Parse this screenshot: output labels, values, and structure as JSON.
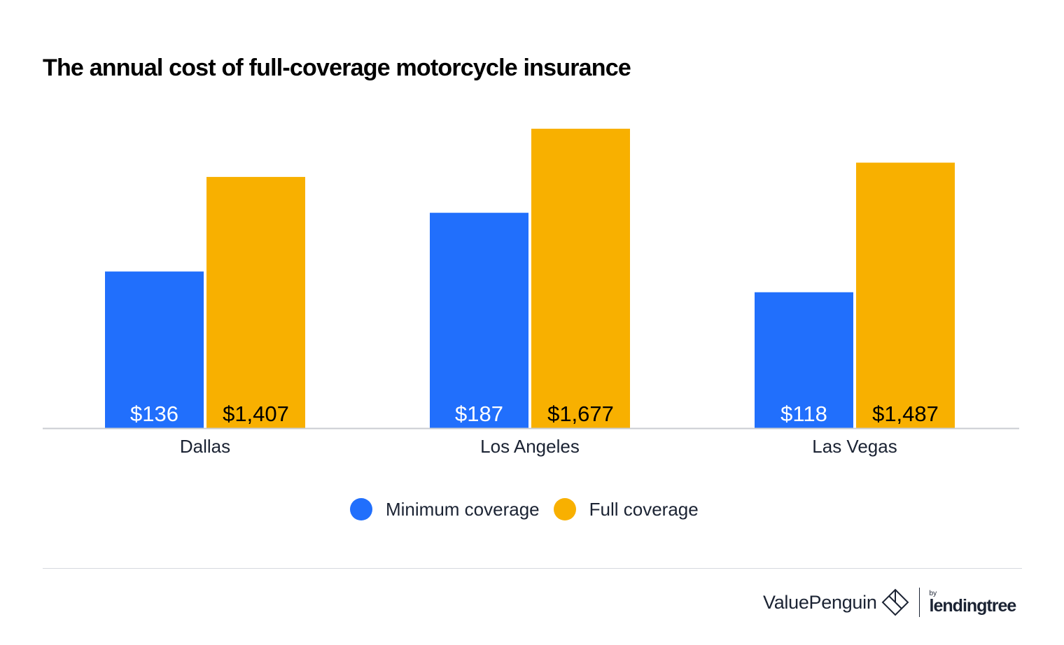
{
  "title": "The annual cost of full-coverage motorcycle insurance",
  "colors": {
    "minimum": "#216ffc",
    "full": "#f8b000",
    "axis": "#c9ccd1",
    "text": "#1b2333",
    "label_on_blue": "#ffffff",
    "label_on_yellow": "#000000"
  },
  "legend": {
    "minimum_label": "Minimum coverage",
    "full_label": "Full coverage"
  },
  "brand": {
    "name": "ValuePenguin",
    "by": "by",
    "partner": "lendingtree"
  },
  "chart_data": {
    "type": "bar",
    "title": "The annual cost of full-coverage motorcycle insurance",
    "categories": [
      "Dallas",
      "Los Angeles",
      "Las Vegas"
    ],
    "series": [
      {
        "name": "Minimum coverage",
        "values": [
          136,
          187,
          118
        ],
        "labels": [
          "$136",
          "$187",
          "$118"
        ],
        "scale_max": 260
      },
      {
        "name": "Full coverage",
        "values": [
          1407,
          1677,
          1487
        ],
        "labels": [
          "$1,407",
          "$1,677",
          "$1,487"
        ],
        "scale_max": "series_max"
      }
    ],
    "xlabel": "",
    "ylabel": "",
    "grid": false,
    "legend_position": "bottom-center"
  }
}
